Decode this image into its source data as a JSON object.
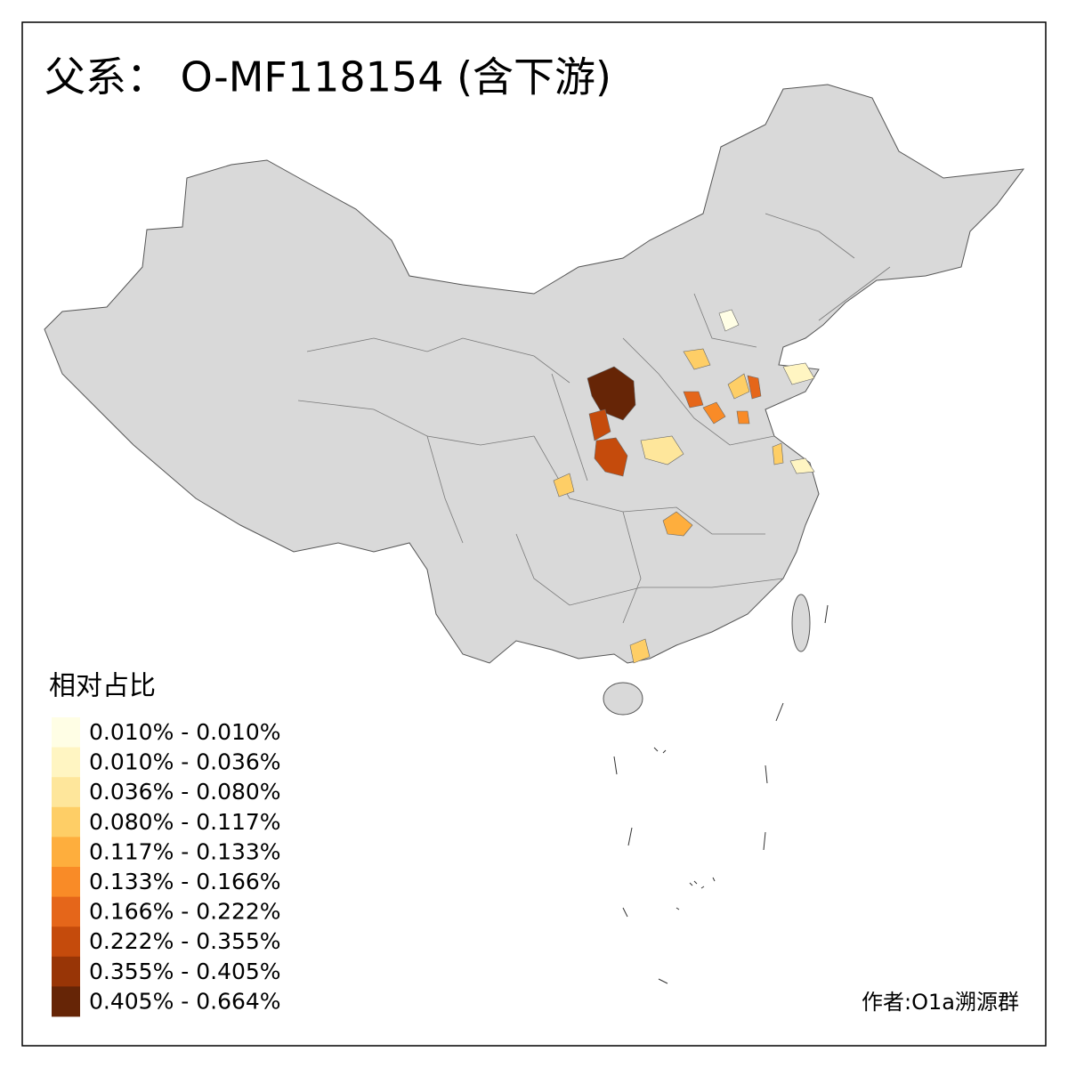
{
  "title": "父系： O-MF118154 (含下游)",
  "legend": {
    "title": "相对占比",
    "items": [
      {
        "label": "0.010% - 0.010%",
        "color": "#fffee5"
      },
      {
        "label": "0.010% - 0.036%",
        "color": "#fff5c2"
      },
      {
        "label": "0.036% - 0.080%",
        "color": "#fee69b"
      },
      {
        "label": "0.080% - 0.117%",
        "color": "#fece66"
      },
      {
        "label": "0.117% - 0.133%",
        "color": "#feae3d"
      },
      {
        "label": "0.133% - 0.166%",
        "color": "#f98b27"
      },
      {
        "label": "0.166% - 0.222%",
        "color": "#e5661a"
      },
      {
        "label": "0.222% - 0.355%",
        "color": "#c54b0c"
      },
      {
        "label": "0.355% - 0.405%",
        "color": "#983506"
      },
      {
        "label": "0.405% - 0.664%",
        "color": "#662506"
      }
    ]
  },
  "credit": "作者:O1a溯源群"
}
